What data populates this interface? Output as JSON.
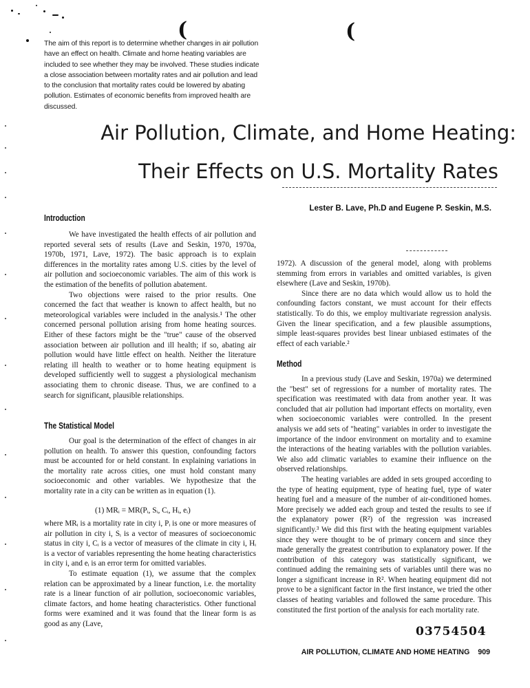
{
  "abstract": "The aim of this report is to determine whether changes in air pollution have an effect on health. Climate and home heating variables are included to see whether they may be involved. These studies indicate a close association between mortality rates and air pollution and lead to the conclusion that mortality rates could be lowered by abating pollution. Estimates of economic benefits from improved health are discussed.",
  "title": {
    "line1": "Air Pollution, Climate, and Home Heating:",
    "line2": "Their Effects on U.S. Mortality Rates"
  },
  "authors": "Lester B. Lave, Ph.D and Eugene P. Seskin, M.S.",
  "left_column": {
    "introduction_heading": "Introduction",
    "intro_p1": "We have investigated the health effects of air pollution and reported several sets of results (Lave and Seskin, 1970, 1970a, 1970b, 1971, Lave, 1972). The basic approach is to explain differences in the mortality rates among U.S. cities by the level of air pollution and socioeconomic variables. The aim of this work is the estimation of the benefits of pollution abatement.",
    "intro_p2": "Two objections were raised to the prior results. One concerned the fact that weather is known to affect health, but no meteorological variables were included in the analysis.¹ The other concerned personal pollution arising from home heating sources. Either of these factors might be the \"true\" cause of the observed association between air pollution and ill health; if so, abating air pollution would have little effect on health. Neither the literature relating ill health to weather or to home heating equipment is developed sufficiently well to suggest a physiological mechanism associating them to chronic disease. Thus, we are confined to a search for significant, plausible relationships.",
    "model_heading": "The Statistical Model",
    "model_p1": "Our goal is the determination of the effect of changes in air pollution on health. To answer this question, confounding factors must be accounted for or held constant. In explaining variations in the mortality rate across cities, one must hold constant many socioeconomic and other variables. We hypothesize that the mortality rate in a city can be written as in equation (1).",
    "equation": "(1) MRᵢ = MR(Pᵢ, Sᵢ, Cᵢ, Hᵢ, eᵢ)",
    "model_p2": "where MRᵢ is a mortality rate in city i, Pᵢ is one or more measures of air pollution in city i, Sᵢ is a vector of measures of socioeconomic status in city i, Cᵢ is a vector of measures of the climate in city i, Hᵢ is a vector of variables representing the home heating characteristics in city i, and eᵢ is an error term for omitted variables.",
    "model_p3": "To estimate equation (1), we assume that the complex relation can be approximated by a linear function, i.e. the mortality rate is a linear function of air pollution, socioeconomic variables, climate factors, and home heating characteristics. Other functional forms were examined and it was found that the linear form is as good as any (Lave,"
  },
  "right_column": {
    "cont_p1": "1972). A discussion of the general model, along with problems stemming from errors in variables and omitted variables, is given elsewhere (Lave and Seskin, 1970b).",
    "cont_p2": "Since there are no data which would allow us to hold the confounding factors constant, we must account for their effects statistically. To do this, we employ multivariate regression analysis. Given the linear specification, and a few plausible assumptions, simple least-squares provides best linear unbiased estimates of the effect of each variable.²",
    "method_heading": "Method",
    "method_p1": "In a previous study (Lave and Seskin, 1970a) we determined the \"best\" set of regressions for a number of mortality rates. The specification was reestimated with data from another year. It was concluded that air pollution had important effects on mortality, even when socioeconomic variables were controlled. In the present analysis we add sets of \"heating\" variables in order to investigate the importance of the indoor environment on mortality and to examine the interactions of the heating variables with the pollution variables. We also add climatic variables to examine their influence on the observed relationships.",
    "method_p2": "The heating variables are added in sets grouped according to the type of heating equipment, type of heating fuel, type of water heating fuel and a measure of the number of air-conditioned homes. More precisely we added each group and tested the results to see if the explanatory power (R²) of the regression was increased significantly.³ We did this first with the heating equipment variables since they were thought to be of primary concern and since they made generally the greatest contribution to explanatory power. If the contribution of this category was statistically significant, we continued adding the remaining sets of variables until there was no longer a significant increase in R². When heating equipment did not prove to be a significant factor in the first instance, we tried the other classes of heating variables and followed the same procedure. This constituted the first portion of the analysis for each mortality rate."
  },
  "doc_number": "03754504",
  "footer": {
    "running_title": "AIR POLLUTION, CLIMATE AND HOME HEATING",
    "page_number": "909"
  }
}
